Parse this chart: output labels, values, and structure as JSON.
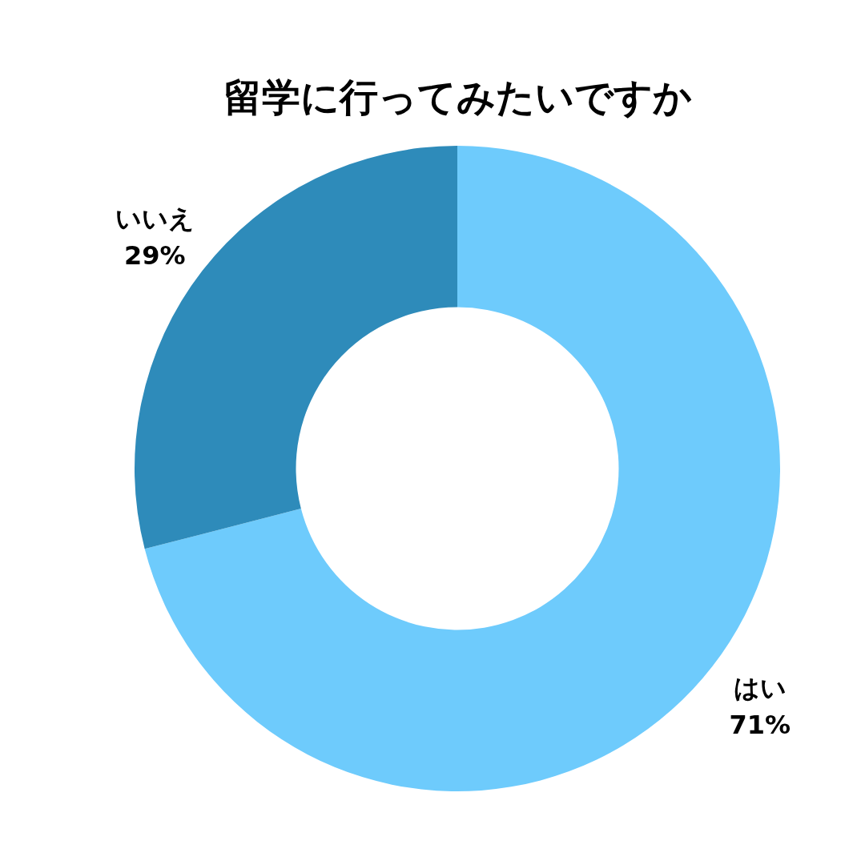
{
  "chart_data": {
    "type": "donut",
    "title": "留学に行ってみたいですか",
    "categories": [
      "はい",
      "いいえ"
    ],
    "values": [
      71,
      29
    ],
    "value_labels": [
      "71%",
      "29%"
    ],
    "colors": [
      "#6ecbfc",
      "#2e8bba"
    ]
  }
}
